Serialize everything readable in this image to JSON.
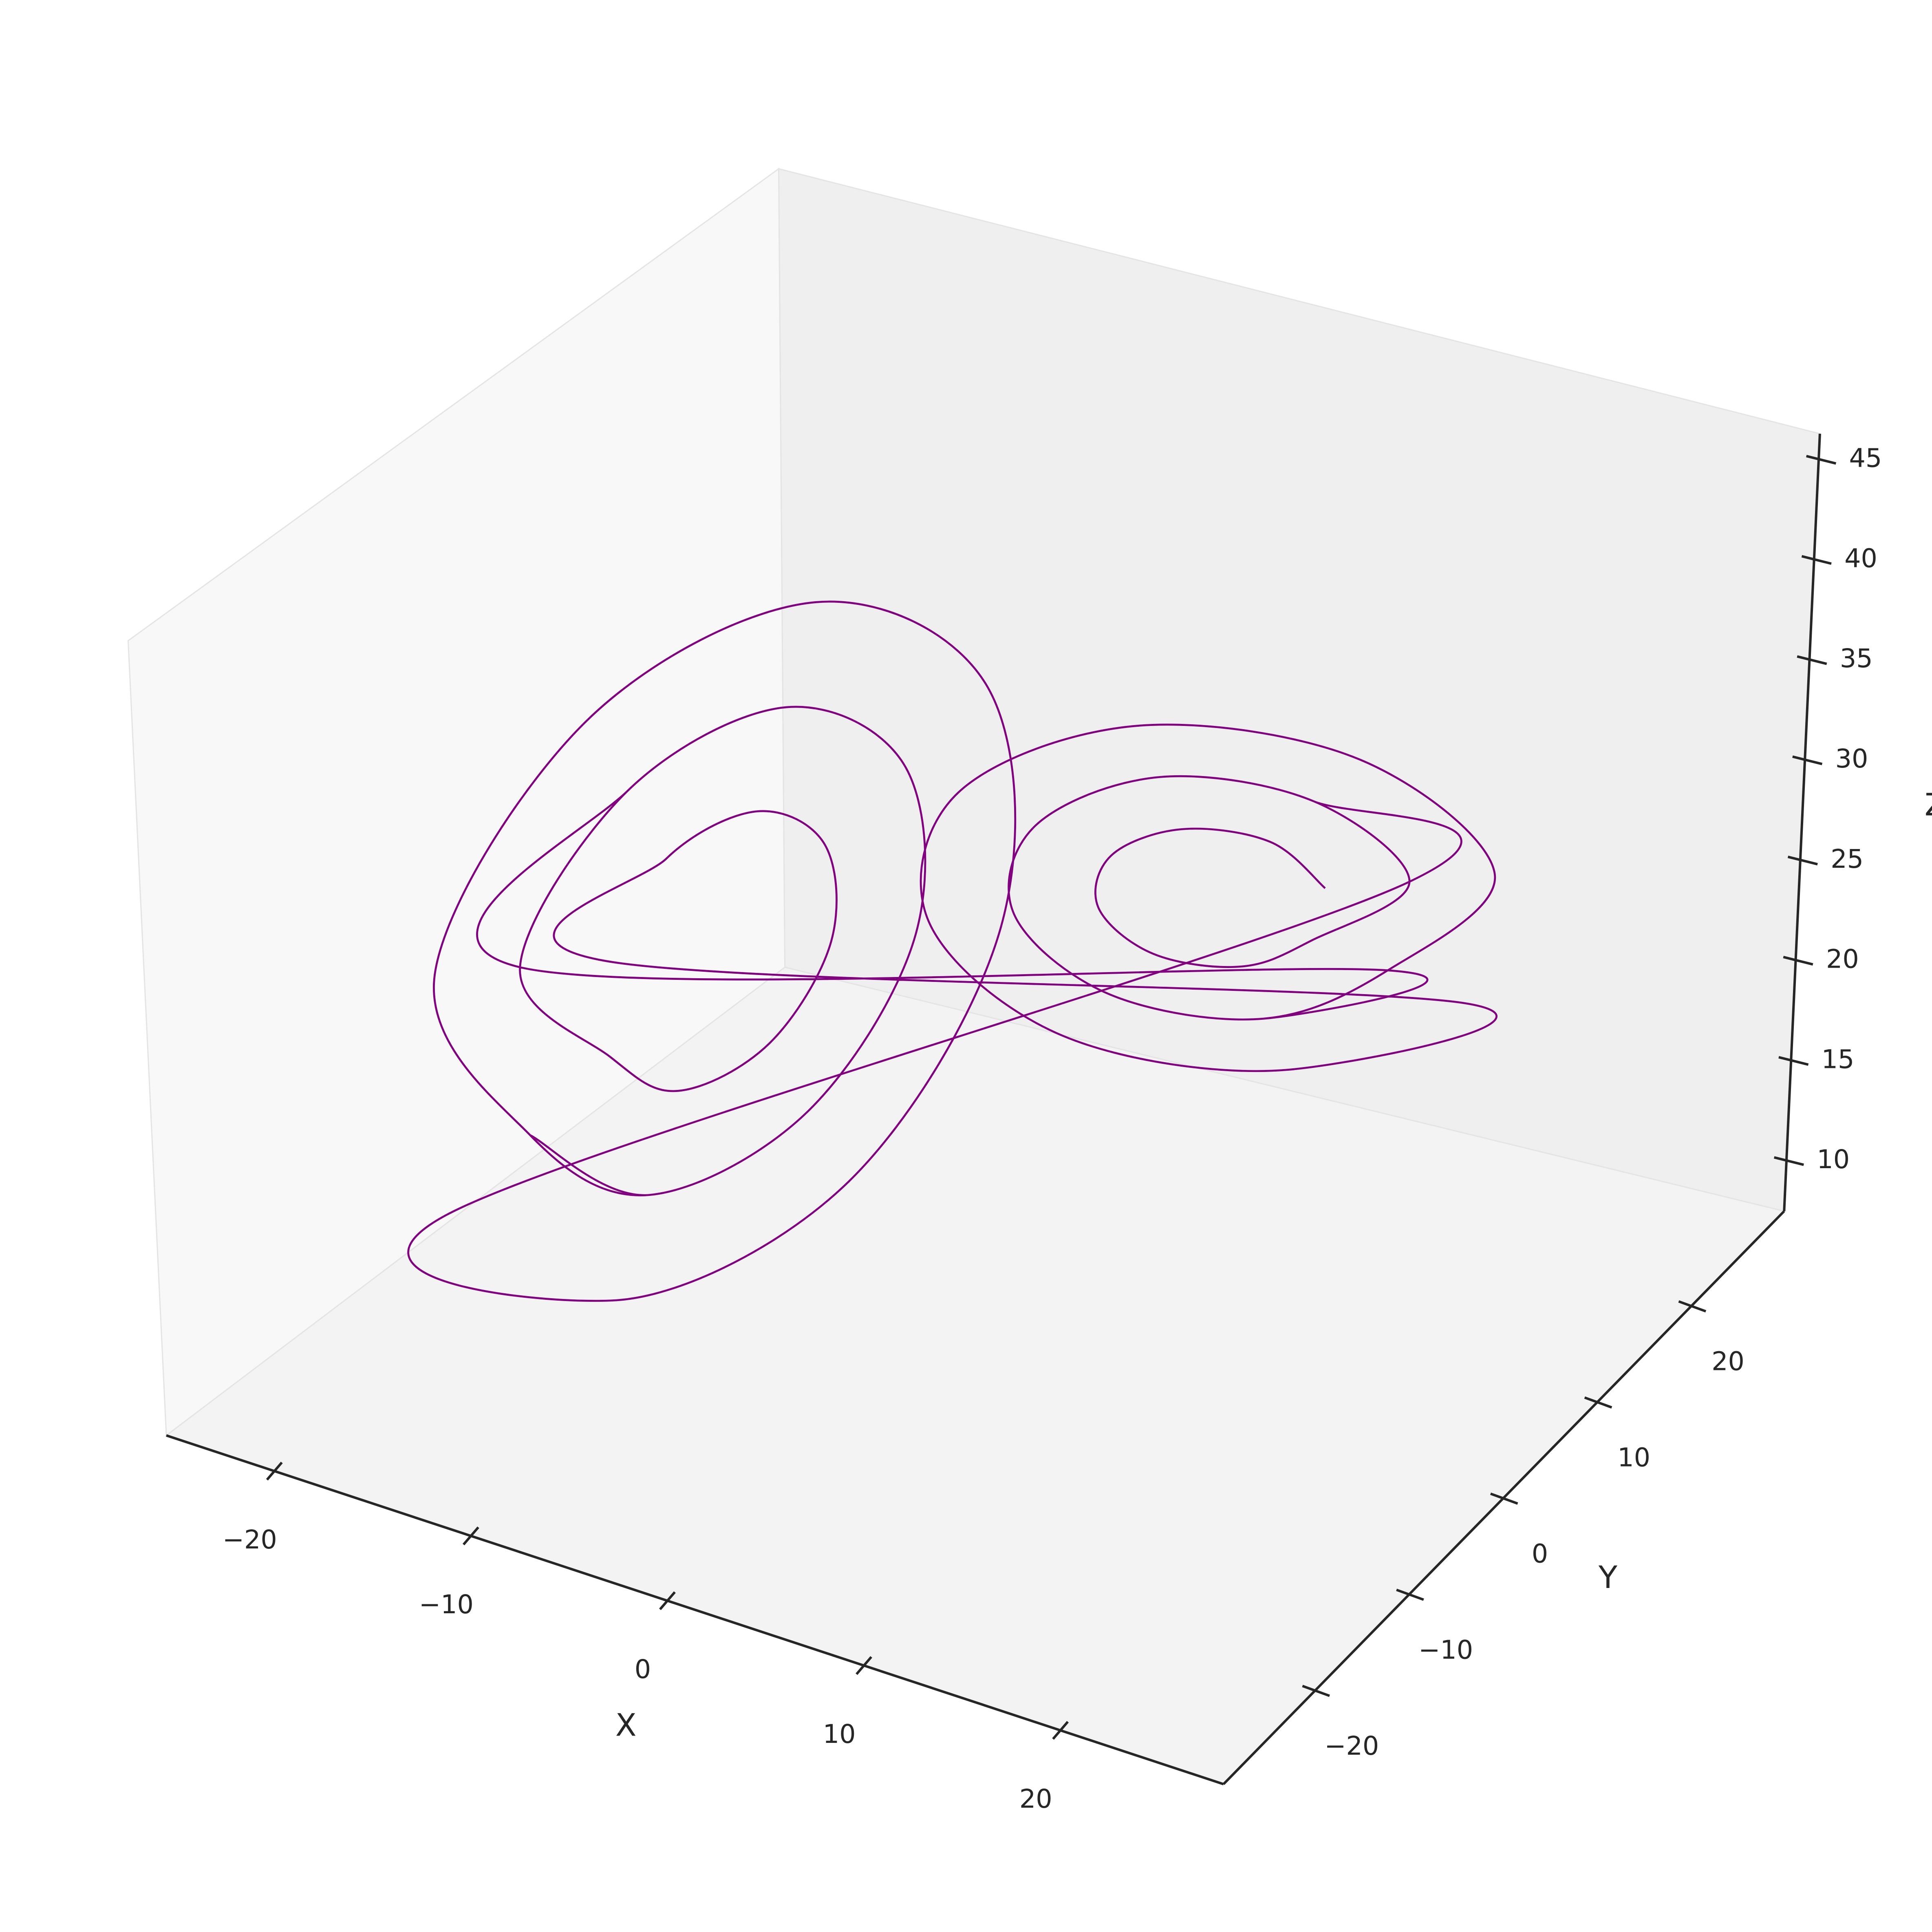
{
  "chart_data": {
    "type": "line3d",
    "color": "#800080",
    "xlabel": "X",
    "ylabel": "Y",
    "zlabel": "Z",
    "x": [
      12.5,
      11.3,
      8.5,
      5.7,
      4.5,
      5.7,
      8.5,
      11.3,
      15.5,
      13.4,
      8.5,
      3.6,
      1.5,
      3.6,
      8.5,
      13.4,
      18.5,
      15.6,
      8.5,
      1.4,
      -1.5,
      1.4,
      8.5,
      15.6,
      -12.5,
      -11.3,
      -8.5,
      -5.7,
      -4.5,
      -5.7,
      -8.5,
      -11.3,
      -15.5,
      -13.4,
      -8.5,
      -3.6,
      -1.5,
      -3.6,
      -8.5,
      -13.4,
      -18.5,
      -15.6,
      -8.5,
      -1.4,
      1.5,
      -1.4,
      -8.5,
      -15.6,
      15.5,
      13.4,
      8.5,
      3.6,
      1.5,
      3.6,
      8.5,
      13.4,
      -15.5,
      -13.4,
      -8.5,
      -3.6,
      -1.5,
      -3.6,
      -8.5,
      -13.4
    ],
    "y": [
      12.2,
      8.5,
      4.8,
      3.3,
      4.8,
      8.5,
      12.2,
      13.7,
      14.9,
      8.5,
      2.1,
      -0.6,
      2.1,
      8.5,
      14.9,
      17.6,
      17.7,
      8.5,
      -0.7,
      -4.5,
      -0.7,
      8.5,
      17.7,
      21.5,
      -12.2,
      -8.5,
      -4.8,
      -3.3,
      -4.8,
      -8.5,
      -12.2,
      -13.7,
      -14.9,
      -8.5,
      -2.1,
      0.6,
      -2.1,
      -8.5,
      -14.9,
      -17.6,
      -17.7,
      -8.5,
      0.7,
      4.5,
      0.7,
      -8.5,
      -17.7,
      -21.5,
      14.9,
      8.5,
      2.1,
      -0.6,
      2.1,
      8.5,
      14.9,
      17.6,
      -14.9,
      -8.5,
      -2.1,
      0.6,
      -2.1,
      -8.5,
      -14.9,
      -17.6
    ],
    "z": [
      27,
      30.7,
      32.2,
      30.7,
      27,
      23.3,
      21.8,
      23.3,
      27,
      33.4,
      36.1,
      33.4,
      27,
      20.6,
      17.9,
      20.6,
      27,
      36.2,
      40,
      36.2,
      27,
      17.8,
      14,
      17.8,
      27,
      30.7,
      32.2,
      30.7,
      27,
      23.3,
      21.8,
      23.3,
      27,
      33.4,
      36.1,
      33.4,
      27,
      20.6,
      17.9,
      20.6,
      27,
      36.2,
      40,
      36.2,
      27,
      17.8,
      14,
      17.8,
      27,
      33.4,
      36.1,
      33.4,
      27,
      20.6,
      17.9,
      20.6,
      27,
      33.4,
      36.1,
      33.4,
      27,
      20.6,
      17.9,
      20.6
    ],
    "xlim": [
      -25.5,
      28.3
    ],
    "ylim": [
      -29.7,
      29.9
    ],
    "zlim": [
      7.5,
      46.3
    ],
    "xticks": [
      {
        "value": -20,
        "label": "−20"
      },
      {
        "value": -10,
        "label": "−10"
      },
      0,
      10,
      20
    ],
    "yticks": [
      {
        "value": -20,
        "label": "−20"
      },
      {
        "value": -10,
        "label": "−10"
      },
      0,
      10,
      20
    ],
    "zticks": [
      10,
      15,
      20,
      25,
      30,
      35,
      40,
      45
    ]
  }
}
